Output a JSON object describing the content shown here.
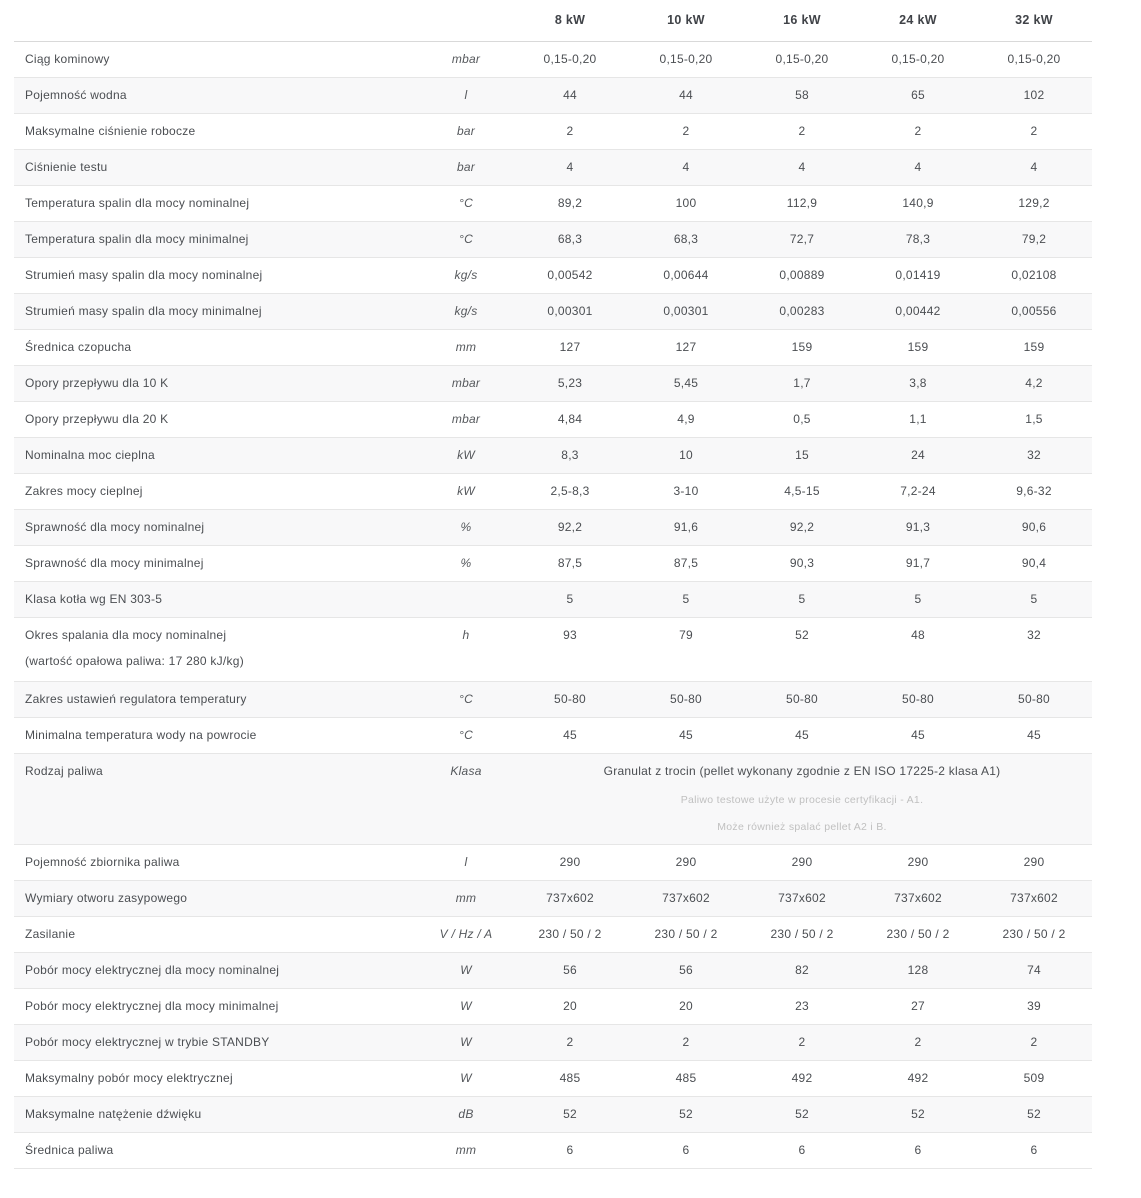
{
  "colors": {
    "stripe": "#f8f8f9",
    "border": "#e6e6e6",
    "header_border": "#d9d9d9",
    "text": "#4b4e52",
    "note_text": "#c0c0c0"
  },
  "table": {
    "columns": [
      "8 kW",
      "10 kW",
      "16 kW",
      "24 kW",
      "32 kW"
    ],
    "rows": [
      {
        "label": "Ciąg kominowy",
        "unit": "mbar",
        "values": [
          "0,15-0,20",
          "0,15-0,20",
          "0,15-0,20",
          "0,15-0,20",
          "0,15-0,20"
        ]
      },
      {
        "label": "Pojemność wodna",
        "unit": "l",
        "values": [
          "44",
          "44",
          "58",
          "65",
          "102"
        ]
      },
      {
        "label": "Maksymalne ciśnienie robocze",
        "unit": "bar",
        "values": [
          "2",
          "2",
          "2",
          "2",
          "2"
        ]
      },
      {
        "label": "Ciśnienie testu",
        "unit": "bar",
        "values": [
          "4",
          "4",
          "4",
          "4",
          "4"
        ]
      },
      {
        "label": "Temperatura spalin dla mocy nominalnej",
        "unit": "°C",
        "values": [
          "89,2",
          "100",
          "112,9",
          "140,9",
          "129,2"
        ]
      },
      {
        "label": "Temperatura spalin dla mocy minimalnej",
        "unit": "°C",
        "values": [
          "68,3",
          "68,3",
          "72,7",
          "78,3",
          "79,2"
        ]
      },
      {
        "label": "Strumień masy spalin dla mocy nominalnej",
        "unit": "kg/s",
        "values": [
          "0,00542",
          "0,00644",
          "0,00889",
          "0,01419",
          "0,02108"
        ]
      },
      {
        "label": "Strumień masy spalin dla mocy minimalnej",
        "unit": "kg/s",
        "values": [
          "0,00301",
          "0,00301",
          "0,00283",
          "0,00442",
          "0,00556"
        ]
      },
      {
        "label": "Średnica czopucha",
        "unit": "mm",
        "values": [
          "127",
          "127",
          "159",
          "159",
          "159"
        ]
      },
      {
        "label": "Opory przepływu dla 10 K",
        "unit": "mbar",
        "values": [
          "5,23",
          "5,45",
          "1,7",
          "3,8",
          "4,2"
        ]
      },
      {
        "label": "Opory przepływu dla 20 K",
        "unit": "mbar",
        "values": [
          "4,84",
          "4,9",
          "0,5",
          "1,1",
          "1,5"
        ]
      },
      {
        "label": "Nominalna moc cieplna",
        "unit": "kW",
        "values": [
          "8,3",
          "10",
          "15",
          "24",
          "32"
        ]
      },
      {
        "label": "Zakres mocy cieplnej",
        "unit": "kW",
        "values": [
          "2,5-8,3",
          "3-10",
          "4,5-15",
          "7,2-24",
          "9,6-32"
        ]
      },
      {
        "label": "Sprawność dla mocy nominalnej",
        "unit": "%",
        "values": [
          "92,2",
          "91,6",
          "92,2",
          "91,3",
          "90,6"
        ]
      },
      {
        "label": "Sprawność dla mocy minimalnej",
        "unit": "%",
        "values": [
          "87,5",
          "87,5",
          "90,3",
          "91,7",
          "90,4"
        ]
      },
      {
        "label": "Klasa kotła wg EN 303-5",
        "unit": "",
        "values": [
          "5",
          "5",
          "5",
          "5",
          "5"
        ]
      },
      {
        "label": "Okres spalania dla mocy nominalnej",
        "sublabel": "(wartość opałowa paliwa: 17 280 kJ/kg)",
        "unit": "h",
        "values": [
          "93",
          "79",
          "52",
          "48",
          "32"
        ]
      },
      {
        "label": "Zakres ustawień regulatora temperatury",
        "unit": "°C",
        "values": [
          "50-80",
          "50-80",
          "50-80",
          "50-80",
          "50-80"
        ]
      },
      {
        "label": "Minimalna temperatura wody na powrocie",
        "unit": "°C",
        "values": [
          "45",
          "45",
          "45",
          "45",
          "45"
        ]
      },
      {
        "label": "Rodzaj paliwa",
        "unit": "Klasa",
        "span_value": "Granulat z trocin (pellet wykonany zgodnie z EN ISO 17225-2 klasa A1)",
        "span_notes": [
          "Paliwo testowe użyte w procesie certyfikacji - A1.",
          "Może również spalać pellet A2 i B."
        ]
      },
      {
        "label": "Pojemność zbiornika paliwa",
        "unit": "l",
        "values": [
          "290",
          "290",
          "290",
          "290",
          "290"
        ]
      },
      {
        "label": "Wymiary otworu zasypowego",
        "unit": "mm",
        "values": [
          "737x602",
          "737x602",
          "737x602",
          "737x602",
          "737x602"
        ]
      },
      {
        "label": "Zasilanie",
        "unit": "V / Hz / A",
        "values": [
          "230 / 50 / 2",
          "230 / 50 / 2",
          "230 / 50 / 2",
          "230 / 50 / 2",
          "230 / 50 / 2"
        ]
      },
      {
        "label": "Pobór mocy elektrycznej dla mocy nominalnej",
        "unit": "W",
        "values": [
          "56",
          "56",
          "82",
          "128",
          "74"
        ]
      },
      {
        "label": "Pobór mocy elektrycznej dla mocy minimalnej",
        "unit": "W",
        "values": [
          "20",
          "20",
          "23",
          "27",
          "39"
        ]
      },
      {
        "label": "Pobór mocy elektrycznej w trybie STANDBY",
        "unit": "W",
        "values": [
          "2",
          "2",
          "2",
          "2",
          "2"
        ]
      },
      {
        "label": "Maksymalny pobór mocy elektrycznej",
        "unit": "W",
        "values": [
          "485",
          "485",
          "492",
          "492",
          "509"
        ]
      },
      {
        "label": "Maksymalne natężenie dźwięku",
        "unit": "dB",
        "values": [
          "52",
          "52",
          "52",
          "52",
          "52"
        ]
      },
      {
        "label": "Średnica paliwa",
        "unit": "mm",
        "values": [
          "6",
          "6",
          "6",
          "6",
          "6"
        ]
      }
    ]
  }
}
